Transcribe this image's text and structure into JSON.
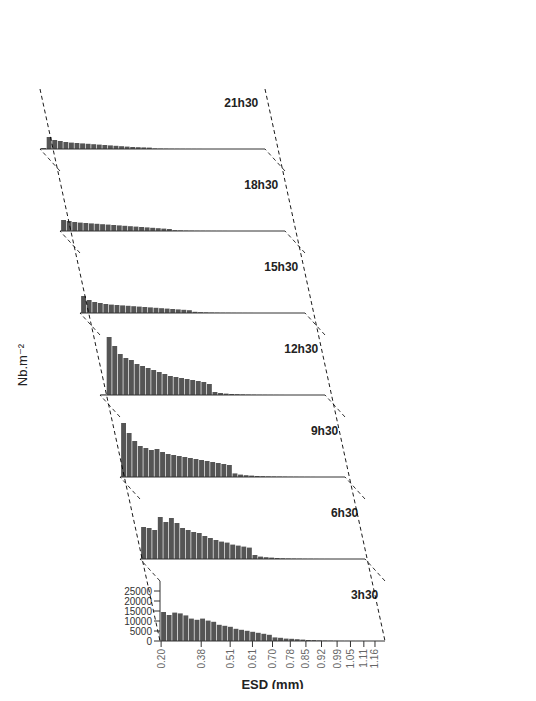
{
  "chart_data": [
    {
      "type": "histogram",
      "annotation": "3h30",
      "xlabel": "ESD (mm)",
      "ylabel": "Nb.m⁻²",
      "color": "#555555",
      "bins": [
        0.2,
        0.225,
        0.25,
        0.275,
        0.3,
        0.325,
        0.35,
        0.375,
        0.4,
        0.425,
        0.45,
        0.475,
        0.5,
        0.525,
        0.55,
        0.575,
        0.6,
        0.625,
        0.65,
        0.675,
        0.7,
        0.725,
        0.75,
        0.775,
        0.8,
        0.825,
        0.85,
        0.875,
        0.9,
        0.925,
        0.95,
        0.975,
        1.0,
        1.025,
        1.05,
        1.075,
        1.1,
        1.125,
        1.15,
        1.175,
        1.2
      ],
      "values": [
        14500,
        13000,
        14200,
        13800,
        12800,
        11200,
        10600,
        11200,
        10200,
        9600,
        8100,
        7600,
        7100,
        6100,
        5600,
        5100,
        4600,
        4100,
        3600,
        3100,
        1800,
        1600,
        1200,
        1100,
        900,
        700,
        500,
        450,
        300,
        200,
        150,
        80,
        60,
        40,
        30,
        20,
        15,
        10,
        5,
        2
      ],
      "xlim": [
        0.195,
        1.205
      ],
      "ylim": [
        0,
        30000
      ],
      "xticks": [
        {
          "value": 0.2,
          "label": "0.20"
        },
        0.38,
        0.51,
        0.61,
        {
          "value": 0.7,
          "label": "0.70"
        },
        0.78,
        0.85,
        0.92,
        0.99,
        1.05,
        1.11,
        1.16
      ],
      "yticks": [
        0,
        5000,
        10000,
        15000,
        20000,
        25000
      ]
    },
    {
      "type": "histogram",
      "annotation": "6h30",
      "color": "#555555",
      "tick_labels": false,
      "bins": [
        0.2,
        0.225,
        0.25,
        0.275,
        0.3,
        0.325,
        0.35,
        0.375,
        0.4,
        0.425,
        0.45,
        0.475,
        0.5,
        0.525,
        0.55,
        0.575,
        0.6,
        0.625,
        0.65,
        0.675,
        0.7,
        0.725,
        0.75,
        0.775,
        0.8,
        0.825,
        0.85,
        0.875,
        0.9,
        0.925,
        0.95,
        0.975,
        1.0,
        1.025,
        1.05,
        1.075,
        1.1,
        1.125,
        1.15,
        1.175,
        1.2
      ],
      "values": [
        16000,
        15500,
        14500,
        21000,
        18500,
        20500,
        18000,
        15500,
        14500,
        13500,
        13000,
        11500,
        10500,
        9500,
        8700,
        8200,
        7200,
        6700,
        6200,
        5700,
        2000,
        1200,
        900,
        700,
        500,
        350,
        250,
        200,
        150,
        100,
        80,
        50,
        30,
        20,
        15,
        10,
        8,
        5,
        3,
        1
      ],
      "xlim": [
        0.195,
        1.205
      ],
      "ylim": [
        0,
        30000
      ]
    },
    {
      "type": "histogram",
      "annotation": "9h30",
      "color": "#555555",
      "tick_labels": false,
      "bins": [
        0.2,
        0.225,
        0.25,
        0.275,
        0.3,
        0.325,
        0.35,
        0.375,
        0.4,
        0.425,
        0.45,
        0.475,
        0.5,
        0.525,
        0.55,
        0.575,
        0.6,
        0.625,
        0.65,
        0.675,
        0.7,
        0.725,
        0.75,
        0.775,
        0.8,
        0.825,
        0.85,
        0.875,
        0.9,
        0.925,
        0.95,
        0.975,
        1.0,
        1.025,
        1.05,
        1.075,
        1.1,
        1.125,
        1.15,
        1.175,
        1.2
      ],
      "values": [
        27000,
        22000,
        18000,
        15500,
        14500,
        13500,
        14000,
        12500,
        11500,
        11000,
        10500,
        10000,
        9500,
        9000,
        8500,
        8000,
        7500,
        7000,
        6500,
        6000,
        1800,
        1200,
        900,
        700,
        500,
        400,
        300,
        250,
        200,
        150,
        100,
        80,
        60,
        40,
        20,
        15,
        10,
        8,
        5,
        2
      ],
      "xlim": [
        0.195,
        1.205
      ],
      "ylim": [
        0,
        30000
      ]
    },
    {
      "type": "histogram",
      "annotation": "12h30",
      "color": "#555555",
      "tick_labels": false,
      "bins": [
        0.2,
        0.225,
        0.25,
        0.275,
        0.3,
        0.325,
        0.35,
        0.375,
        0.4,
        0.425,
        0.45,
        0.475,
        0.5,
        0.525,
        0.55,
        0.575,
        0.6,
        0.625,
        0.65,
        0.675,
        0.7,
        0.725,
        0.75,
        0.775,
        0.8,
        0.825,
        0.85,
        0.875,
        0.9,
        0.925,
        0.95,
        0.975,
        1.0,
        1.025,
        1.05,
        1.075,
        1.1,
        1.125,
        1.15,
        1.175,
        1.2
      ],
      "values": [
        200,
        29000,
        24500,
        20500,
        18500,
        17500,
        15500,
        14500,
        13500,
        12500,
        11500,
        10500,
        9500,
        9000,
        8500,
        8000,
        7500,
        7000,
        6500,
        5500,
        1500,
        1000,
        700,
        500,
        400,
        300,
        200,
        150,
        100,
        80,
        60,
        40,
        25,
        15,
        10,
        8,
        5,
        3,
        2,
        1
      ],
      "xlim": [
        0.195,
        1.205
      ],
      "ylim": [
        0,
        30000
      ]
    },
    {
      "type": "histogram",
      "annotation": "15h30",
      "color": "#555555",
      "tick_labels": false,
      "bins": [
        0.2,
        0.225,
        0.25,
        0.275,
        0.3,
        0.325,
        0.35,
        0.375,
        0.4,
        0.425,
        0.45,
        0.475,
        0.5,
        0.525,
        0.55,
        0.575,
        0.6,
        0.625,
        0.65,
        0.675,
        0.7,
        0.725,
        0.75,
        0.775,
        0.8,
        0.825,
        0.85,
        0.875,
        0.9,
        0.925,
        0.95,
        0.975,
        1.0,
        1.025,
        1.05,
        1.075,
        1.1,
        1.125,
        1.15,
        1.175,
        1.2
      ],
      "values": [
        8500,
        6500,
        5500,
        5000,
        4500,
        4200,
        4000,
        3800,
        3600,
        3400,
        3200,
        3000,
        2800,
        2600,
        2400,
        2200,
        2000,
        1800,
        1600,
        1400,
        600,
        400,
        300,
        200,
        150,
        100,
        80,
        60,
        40,
        30,
        20,
        15,
        10,
        8,
        5,
        3,
        2,
        1,
        1,
        0
      ],
      "xlim": [
        0.195,
        1.205
      ],
      "ylim": [
        0,
        30000
      ]
    },
    {
      "type": "histogram",
      "annotation": "18h30",
      "color": "#555555",
      "tick_labels": false,
      "bins": [
        0.2,
        0.225,
        0.25,
        0.275,
        0.3,
        0.325,
        0.35,
        0.375,
        0.4,
        0.425,
        0.45,
        0.475,
        0.5,
        0.525,
        0.55,
        0.575,
        0.6,
        0.625,
        0.65,
        0.675,
        0.7,
        0.725,
        0.75,
        0.775,
        0.8,
        0.825,
        0.85,
        0.875,
        0.9,
        0.925,
        0.95,
        0.975,
        1.0,
        1.025,
        1.05,
        1.075,
        1.1,
        1.125,
        1.15,
        1.175,
        1.2
      ],
      "values": [
        5500,
        5000,
        4500,
        4200,
        4000,
        3800,
        3600,
        3400,
        3200,
        3000,
        2800,
        2600,
        2400,
        2200,
        2000,
        1800,
        1600,
        1400,
        1200,
        1000,
        400,
        300,
        200,
        150,
        100,
        80,
        60,
        40,
        30,
        20,
        15,
        10,
        8,
        5,
        3,
        2,
        1,
        1,
        0,
        0
      ],
      "xlim": [
        0.195,
        1.205
      ],
      "ylim": [
        0,
        30000
      ]
    },
    {
      "type": "histogram",
      "annotation": "21h30",
      "color": "#555555",
      "tick_labels": false,
      "bins": [
        0.2,
        0.225,
        0.25,
        0.275,
        0.3,
        0.325,
        0.35,
        0.375,
        0.4,
        0.425,
        0.45,
        0.475,
        0.5,
        0.525,
        0.55,
        0.575,
        0.6,
        0.625,
        0.65,
        0.675,
        0.7,
        0.725,
        0.75,
        0.775,
        0.8,
        0.825,
        0.85,
        0.875,
        0.9,
        0.925,
        0.95,
        0.975,
        1.0,
        1.025,
        1.05,
        1.075,
        1.1,
        1.125,
        1.15,
        1.175,
        1.2
      ],
      "values": [
        500,
        6000,
        4500,
        4000,
        3500,
        3200,
        3000,
        2800,
        2600,
        2400,
        2200,
        2000,
        1800,
        1600,
        1400,
        1200,
        1000,
        900,
        800,
        700,
        300,
        200,
        150,
        100,
        80,
        60,
        40,
        30,
        20,
        15,
        10,
        8,
        5,
        3,
        2,
        1,
        1,
        0,
        0,
        0
      ],
      "xlim": [
        0.195,
        1.205
      ],
      "ylim": [
        0,
        30000
      ]
    }
  ]
}
